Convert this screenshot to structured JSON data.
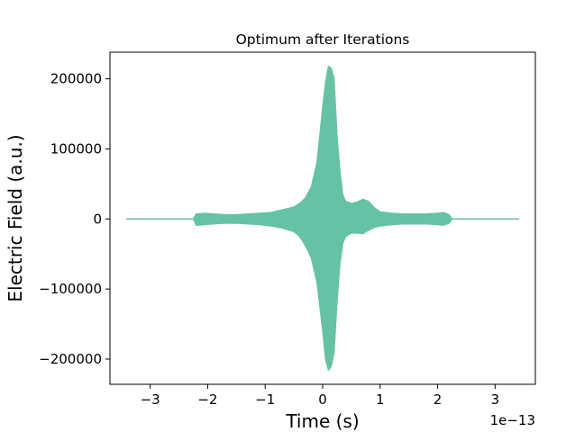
{
  "chart_data": {
    "type": "line",
    "title": "Optimum after Iterations",
    "xlabel": "Time (s)",
    "ylabel": "Electric Field (a.u.)",
    "x_offset_label": "1e−13",
    "xlim": [
      -3.7,
      3.7
    ],
    "ylim": [
      -236000,
      238000
    ],
    "x_ticks": [
      -3,
      -2,
      -1,
      0,
      1,
      2,
      3
    ],
    "x_tick_labels": [
      "−3",
      "−2",
      "−1",
      "0",
      "1",
      "2",
      "3"
    ],
    "y_ticks": [
      -200000,
      -100000,
      0,
      100000,
      200000
    ],
    "y_tick_labels": [
      "−200000",
      "−100000",
      "0",
      "100000",
      "200000"
    ],
    "grid": false,
    "series": [
      {
        "color": "#66c2a5",
        "envelope": {
          "x": [
            -3.42,
            -2.25,
            -2.2,
            -2.05,
            -1.9,
            -1.7,
            -1.5,
            -1.3,
            -1.1,
            -0.9,
            -0.7,
            -0.5,
            -0.4,
            -0.3,
            -0.2,
            -0.1,
            -0.05,
            0.0,
            0.05,
            0.1,
            0.15,
            0.2,
            0.25,
            0.3,
            0.35,
            0.4,
            0.5,
            0.6,
            0.7,
            0.8,
            0.9,
            1.0,
            1.2,
            1.4,
            1.6,
            1.8,
            2.0,
            2.1,
            2.2,
            2.25,
            3.42
          ],
          "upper": [
            0,
            0,
            7000,
            8000,
            7000,
            6000,
            6000,
            7000,
            8000,
            9000,
            13000,
            17000,
            22000,
            30000,
            45000,
            80000,
            120000,
            160000,
            195000,
            218000,
            215000,
            200000,
            120000,
            70000,
            35000,
            25000,
            22000,
            24000,
            28000,
            25000,
            16000,
            10000,
            8000,
            7000,
            7000,
            7000,
            8000,
            9000,
            6000,
            0,
            0
          ],
          "lower": [
            0,
            0,
            -9000,
            -8000,
            -7000,
            -6000,
            -6000,
            -7000,
            -8000,
            -10000,
            -13000,
            -18000,
            -25000,
            -38000,
            -55000,
            -90000,
            -125000,
            -160000,
            -200000,
            -216000,
            -210000,
            -190000,
            -120000,
            -65000,
            -35000,
            -25000,
            -20000,
            -20000,
            -21000,
            -16000,
            -12000,
            -10000,
            -8000,
            -7000,
            -7000,
            -7000,
            -8000,
            -9000,
            -6000,
            0,
            0
          ]
        }
      }
    ]
  }
}
